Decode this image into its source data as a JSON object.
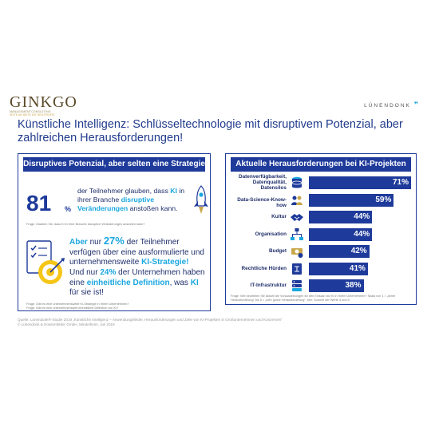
{
  "brand": {
    "left_name": "GINKGO",
    "left_sub": "MANAGEMENTCONSULTING",
    "left_sub2": "SEITE AN SEITE MIT DEN PROFIS",
    "right_name": "LÜNENDONK",
    "right_mark": "❞"
  },
  "headline": "Künstliche Intelligenz: Schlüsseltechnologie mit disruptivem Potenzial, aber zahlreichen Herausforderungen!",
  "left_panel": {
    "title": "Disruptives Potenzial, aber selten eine Strategie",
    "stat1_number": "81",
    "stat1_unit": "%",
    "stat1_part1": "der Teilnehmer glauben, dass ",
    "stat1_hl1": "KI",
    "stat1_part2": " in ihrer Branche ",
    "stat1_hl2": "disruptive Veränderungen",
    "stat1_part3": " anstoßen kann.",
    "question1": "Frage: Glauben Sie, dass KI in Ihrer Branche disruptive Veränderungen anstoßen kann?",
    "stat2_hl1": "Aber",
    "stat2_mid": " nur ",
    "stat2_number": "27%",
    "stat2_part1": " der Teilnehmer verfügen über eine ausformulierte und unternehmensweite ",
    "stat2_hl2": "KI-Strategie!",
    "stat3_part1": "Und nur ",
    "stat3_hl1": "24%",
    "stat3_part2": " der Unternehmen haben eine ",
    "stat3_hl2": "einheitliche Definition",
    "stat3_part3": ", was ",
    "stat3_hl3": "KI",
    "stat3_part4": " für sie ist!",
    "question2a": "Frage: Gibt es eine unternehmensweite KI-Strategie in Ihrem Unternehmen?",
    "question2b": "Frage: Gibt es eine unternehmensweit einheitliche Definition von KI?"
  },
  "right_panel": {
    "title": "Aktuelle Herausforderungen bei KI-Projekten",
    "question": "Frage: Wie beurteilen Sie aktuell die Voraussetzungen für den Einsatz von KI in Ihrem Unternehmen? Skala von 1 = „keine Herausforderung“ bis 5 = „sehr große Herausforderung“; hier: Summe der Werte 4 und 5"
  },
  "chart_data": {
    "type": "bar",
    "orientation": "horizontal",
    "categories": [
      "Datenverfügbarkeit, Datenqualität, Datensilos",
      "Data-Science-Know-how",
      "Kultur",
      "Organisation",
      "Budget",
      "Rechtliche Hürden",
      "IT-Infrastruktur"
    ],
    "values": [
      71,
      59,
      44,
      44,
      42,
      41,
      38
    ],
    "value_labels": [
      "71%",
      "59%",
      "44%",
      "44%",
      "42%",
      "41%",
      "38%"
    ],
    "xlim": [
      0,
      71
    ],
    "title": "Aktuelle Herausforderungen bei KI-Projekten",
    "bar_color": "#1e3a9a",
    "icons": [
      "database-icon",
      "people-gears-icon",
      "handshake-icon",
      "org-chart-icon",
      "money-icon",
      "law-book-icon",
      "server-icon"
    ]
  },
  "source_line1": "Quelle: Lünendonk®-Studie 2019 „Künstliche Intelligenz – Anwendungsfelder, Herausforderungen und Ziele von KI-Projekten in Großunternehmen und Konzernen“",
  "source_line2": "© Lünendonk & Hossenfelder GmbH, Mindelheim, Juli 2019",
  "colors": {
    "navy": "#1e3a9a",
    "accent": "#1aa7e0",
    "gold": "#c9a84c"
  }
}
